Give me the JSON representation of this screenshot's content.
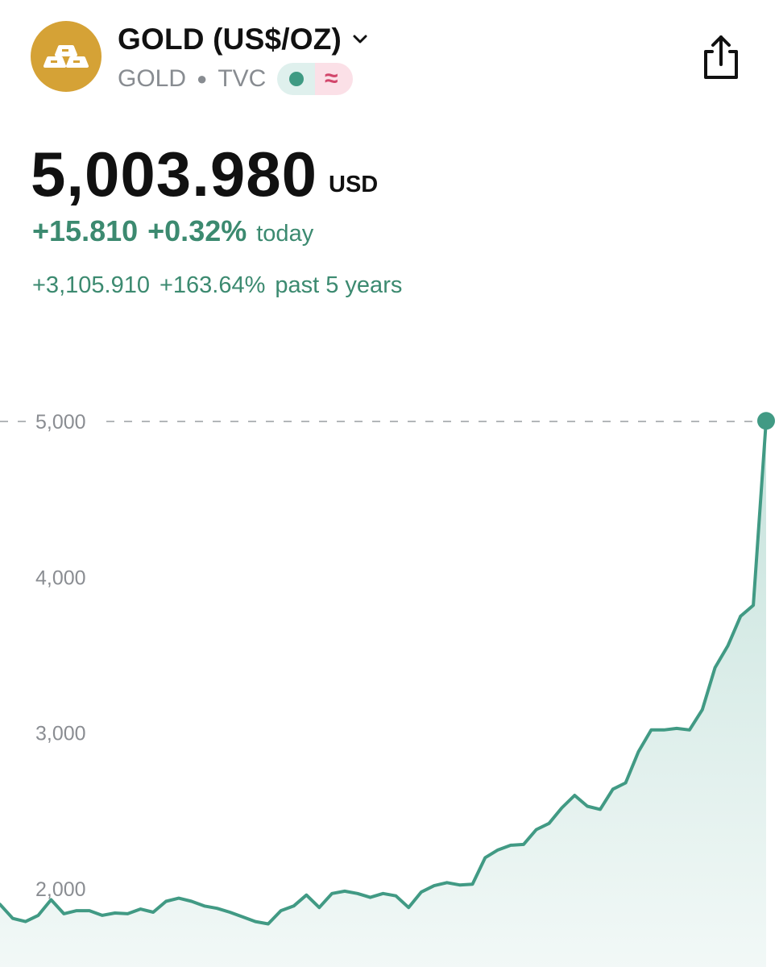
{
  "header": {
    "title": "GOLD (US$/OZ)",
    "symbol": "GOLD",
    "exchange": "TVC",
    "icons": {
      "logo": "gold-bars-icon",
      "dropdown": "chevron-down-icon",
      "market_status": "market-open-dot-icon",
      "delayed": "approx-wave-icon",
      "share": "share-icon"
    }
  },
  "quote": {
    "price": "5,003.980",
    "currency": "USD",
    "change_value": "+15.810",
    "change_percent": "+0.32%",
    "change_period": "today",
    "perf_value": "+3,105.910",
    "perf_percent": "+163.64%",
    "perf_period": "past 5 years"
  },
  "colors": {
    "accent_green": "#3c8a70",
    "line": "#419a84",
    "logo_bg": "#d5a236",
    "pill_green_bg": "#dff0ed",
    "pill_pink_bg": "#fbe0e7"
  },
  "chart_data": {
    "type": "area",
    "title": "",
    "xlabel": "",
    "ylabel": "",
    "yticks": [
      "2,000",
      "3,000",
      "4,000",
      "5,000"
    ],
    "ylim": [
      1500,
      5200
    ],
    "reference_line": 5000,
    "grid": false,
    "series": [
      {
        "values": [
          1900,
          1810,
          1790,
          1830,
          1930,
          1840,
          1860,
          1860,
          1830,
          1845,
          1840,
          1870,
          1850,
          1920,
          1940,
          1920,
          1890,
          1875,
          1850,
          1820,
          1790,
          1775,
          1860,
          1890,
          1960,
          1880,
          1970,
          1985,
          1970,
          1945,
          1970,
          1955,
          1880,
          1980,
          2020,
          2040,
          2025,
          2030,
          2200,
          2250,
          2280,
          2285,
          2380,
          2420,
          2520,
          2600,
          2530,
          2510,
          2640,
          2680,
          2880,
          3020,
          3020,
          3030,
          3020,
          3150,
          3420,
          3560,
          3750,
          3820,
          5004
        ]
      }
    ]
  }
}
